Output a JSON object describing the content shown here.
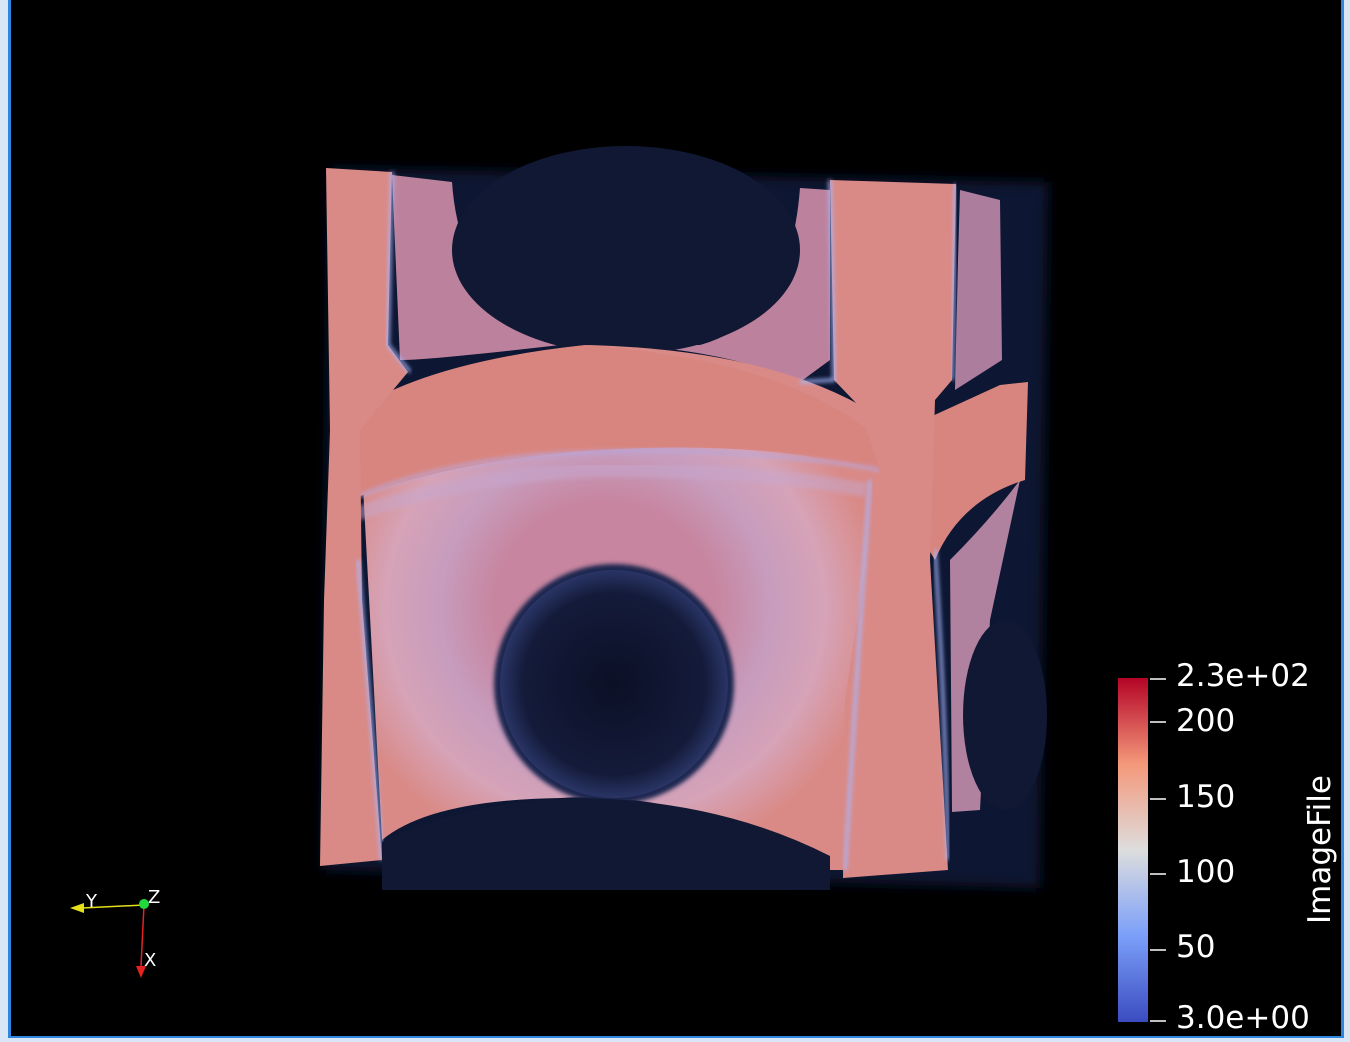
{
  "viewport": {
    "background": "#000000",
    "border_color": "#2e86de"
  },
  "scalar_bar": {
    "title": "ImageFile",
    "labels": [
      "2.3e+02",
      "200",
      "150",
      "100",
      "50",
      "3.0e+00"
    ],
    "colormap_top": "#b40426",
    "colormap_mid": "#dddddd",
    "colormap_bottom": "#3b4cc0"
  },
  "orientation_axes": {
    "x_label": "X",
    "y_label": "Y",
    "z_label": "Z",
    "x_color": "#e32222",
    "y_color": "#e5e017",
    "z_color": "#21d93d"
  },
  "volume": {
    "surface_color": "#d98a86",
    "edge_color": "#9fb3ff",
    "hole_color": "#111833"
  }
}
